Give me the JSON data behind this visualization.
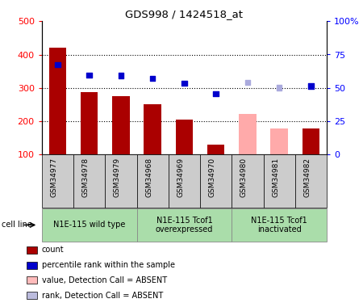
{
  "title": "GDS998 / 1424518_at",
  "samples": [
    "GSM34977",
    "GSM34978",
    "GSM34979",
    "GSM34968",
    "GSM34969",
    "GSM34970",
    "GSM34980",
    "GSM34981",
    "GSM34982"
  ],
  "bar_values": [
    420,
    287,
    276,
    251,
    204,
    130,
    222,
    179,
    179
  ],
  "bar_colors": [
    "#aa0000",
    "#aa0000",
    "#aa0000",
    "#aa0000",
    "#aa0000",
    "#aa0000",
    "#ffaaaa",
    "#ffaaaa",
    "#aa0000"
  ],
  "dot_values": [
    370,
    338,
    337,
    328,
    314,
    283,
    316,
    300,
    306
  ],
  "dot_colors": [
    "#0000cc",
    "#0000cc",
    "#0000cc",
    "#0000cc",
    "#0000cc",
    "#0000cc",
    "#aaaadd",
    "#aaaadd",
    "#0000cc"
  ],
  "ylim_left": [
    100,
    500
  ],
  "ylim_right": [
    0,
    100
  ],
  "yticks_left": [
    100,
    200,
    300,
    400,
    500
  ],
  "yticks_right": [
    0,
    25,
    50,
    75,
    100
  ],
  "ytick_labels_right": [
    "0",
    "25",
    "50",
    "75",
    "100%"
  ],
  "grid_values": [
    200,
    300,
    400
  ],
  "groups": [
    {
      "label": "N1E-115 wild type",
      "start": 0,
      "end": 3
    },
    {
      "label": "N1E-115 Tcof1\noverexpressed",
      "start": 3,
      "end": 6
    },
    {
      "label": "N1E-115 Tcof1\ninactivated",
      "start": 6,
      "end": 9
    }
  ],
  "cell_line_label": "cell line",
  "legend_items": [
    {
      "label": "count",
      "color": "#aa0000"
    },
    {
      "label": "percentile rank within the sample",
      "color": "#0000cc"
    },
    {
      "label": "value, Detection Call = ABSENT",
      "color": "#ffbbbb"
    },
    {
      "label": "rank, Detection Call = ABSENT",
      "color": "#bbbbdd"
    }
  ],
  "background_color": "#ffffff",
  "sample_bg_color": "#cccccc",
  "group_area_color": "#aaddaa",
  "group_border_color": "#888888"
}
